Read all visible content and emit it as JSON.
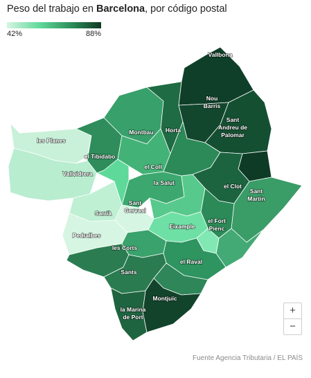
{
  "title": {
    "prefix": "Peso del trabajo en ",
    "city": "Barcelona",
    "suffix": ", por código postal"
  },
  "legend": {
    "min_label": "42%",
    "max_label": "88%",
    "colors": [
      "#d6f5e3",
      "#5fd99a",
      "#2b8a57",
      "#0e3b25"
    ]
  },
  "map_labels": {
    "vallbona": "Vallbona",
    "nou_barris_1": "Nou",
    "nou_barris_2": "Barris",
    "sant_andreu_1": "Sant",
    "sant_andreu_2": "Andreu de",
    "sant_andreu_3": "Palomar",
    "horta": "Horta",
    "montbau": "Montbau",
    "les_planes": "les Planes",
    "el_tibidabo": "el Tibidabo",
    "el_coll": "el Coll",
    "vallvidrera": "Vallvidrera",
    "la_salut": "la Salut",
    "el_clot": "el Clot",
    "sant_marti_1": "Sant",
    "sant_marti_2": "Martín",
    "sant_gervasi_1": "Sant",
    "sant_gervasi_2": "Gervasi",
    "sarria": "Sarrià",
    "eixample": "Eixample",
    "el_fort_pienc_1": "el Fort",
    "el_fort_pienc_2": "Pienc",
    "pedralbes": "Pedralbes",
    "les_corts": "les Corts",
    "el_raval": "el Raval",
    "sants": "Sants",
    "montjuic": "Montjuïc",
    "la_marina_1": "la Marina",
    "la_marina_2": "de Port"
  },
  "zoom": {
    "in_label": "+",
    "out_label": "−"
  },
  "source": "Fuente Agencia Tributaria / EL PAÍS"
}
